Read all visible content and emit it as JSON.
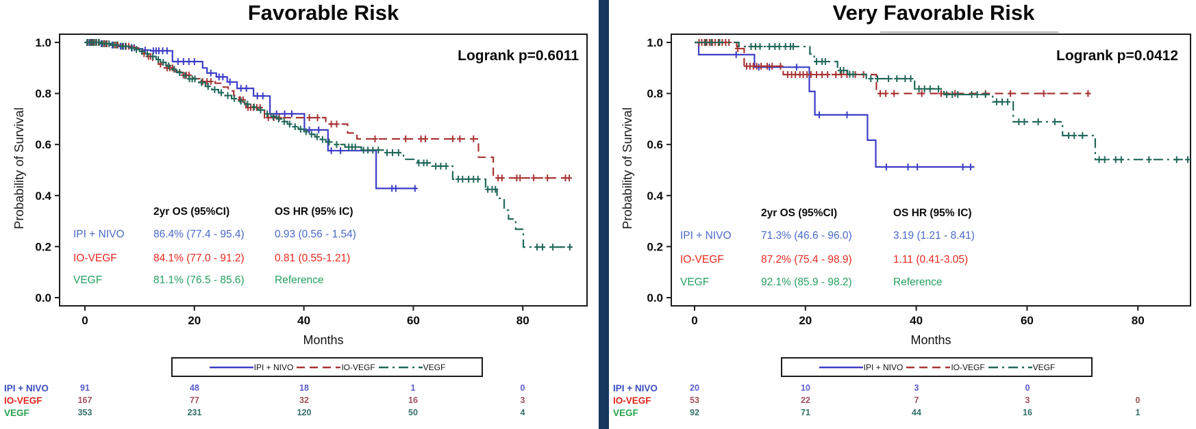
{
  "colors": {
    "line_blue": "#3c3cc8",
    "line_red": "#a83434",
    "line_green": "#20685a",
    "stats_blue": "#4a68c8",
    "stats_red": "#e8281e",
    "stats_green": "#22a060",
    "risk_label_blue": "#3b4cc0",
    "risk_label_red": "#e0241b",
    "risk_label_green": "#28a24c",
    "risk_num_blue": "#5a5ad2",
    "risk_num_red": "#a0505e",
    "risk_num_green": "#34706a",
    "divider": "#17365d",
    "axis": "#1a1a1a",
    "artifact_gray": "#b3b3b3"
  },
  "chart_data": [
    {
      "type": "line",
      "subtype": "kaplan-meier-step",
      "title": "Favorable Risk",
      "annotation": "Logrank p=0.6011",
      "xlabel": "Months",
      "ylabel": "Probability of Survival",
      "x_ticks": [
        0,
        20,
        40,
        60,
        80
      ],
      "y_ticks": [
        0.0,
        0.2,
        0.4,
        0.6,
        0.8,
        1.0
      ],
      "xlim": [
        -4.6,
        91.7
      ],
      "ylim": [
        -0.03,
        1.03
      ],
      "grid": false,
      "legend_position": "bottom",
      "series": [
        {
          "name": "IPI + NIVO",
          "color": "#3c3cc8",
          "dash": "solid",
          "steps": [
            [
              0,
              1.0
            ],
            [
              2.5,
              0.995
            ],
            [
              4.5,
              0.99
            ],
            [
              6,
              0.985
            ],
            [
              8,
              0.98
            ],
            [
              9.5,
              0.975
            ],
            [
              10.5,
              0.97
            ],
            [
              12,
              0.967
            ],
            [
              16,
              0.925
            ],
            [
              21.5,
              0.9
            ],
            [
              22.3,
              0.88
            ],
            [
              24,
              0.865
            ],
            [
              26,
              0.845
            ],
            [
              27.8,
              0.82
            ],
            [
              30.8,
              0.79
            ],
            [
              33.8,
              0.72
            ],
            [
              40.1,
              0.657
            ],
            [
              44.4,
              0.576
            ],
            [
              53.2,
              0.428
            ],
            [
              60.6,
              0.428
            ]
          ],
          "censors": [
            0.4,
            0.8,
            1.2,
            1.6,
            2,
            3,
            3.5,
            5,
            6.5,
            7,
            8.5,
            9,
            11,
            12.5,
            13,
            13.5,
            14.2,
            15,
            17,
            18,
            19,
            20,
            23,
            24.5,
            25.2,
            26.5,
            28.5,
            29.5,
            31.5,
            32.5,
            35,
            36.5,
            37.8,
            41,
            42.7,
            45,
            46.7,
            56.1,
            56.8,
            60.3
          ]
        },
        {
          "name": "IO-VEGF",
          "color": "#a83434",
          "dash": "dash",
          "steps": [
            [
              0,
              1.0
            ],
            [
              3,
              0.995
            ],
            [
              5,
              0.99
            ],
            [
              7,
              0.985
            ],
            [
              9,
              0.978
            ],
            [
              9.8,
              0.97
            ],
            [
              10.4,
              0.956
            ],
            [
              11.2,
              0.945
            ],
            [
              12.4,
              0.93
            ],
            [
              13.4,
              0.915
            ],
            [
              14.5,
              0.9
            ],
            [
              16.6,
              0.885
            ],
            [
              17.5,
              0.872
            ],
            [
              19.8,
              0.858
            ],
            [
              21,
              0.847
            ],
            [
              23.8,
              0.84
            ],
            [
              25,
              0.825
            ],
            [
              26.2,
              0.81
            ],
            [
              27.2,
              0.792
            ],
            [
              28.2,
              0.775
            ],
            [
              29.4,
              0.745
            ],
            [
              32.8,
              0.705
            ],
            [
              44,
              0.68
            ],
            [
              48,
              0.645
            ],
            [
              49.7,
              0.622
            ],
            [
              71.9,
              0.55
            ],
            [
              74.6,
              0.469
            ],
            [
              88.9,
              0.469
            ]
          ],
          "censors": [
            0.5,
            1,
            1.5,
            2,
            2.5,
            3.5,
            4,
            5.5,
            6,
            7.5,
            8,
            10.8,
            11.6,
            12,
            13.8,
            15,
            15.5,
            16,
            18,
            18.5,
            19,
            21.5,
            22.3,
            23,
            28.4,
            28.9,
            29.8,
            30.3,
            30.8,
            31.4,
            32,
            33.5,
            34.5,
            35.5,
            41,
            42.5,
            45,
            46,
            53,
            58.6,
            61.4,
            62.2,
            67.2,
            68.5,
            71,
            75.5,
            76.2,
            78.9,
            79.5,
            82,
            84.5,
            87.8,
            88.5
          ]
        },
        {
          "name": "VEGF",
          "color": "#20685a",
          "dash": "dashdot",
          "steps": [
            [
              0,
              1.0
            ],
            [
              3,
              0.995
            ],
            [
              5,
              0.99
            ],
            [
              6.5,
              0.985
            ],
            [
              8,
              0.978
            ],
            [
              9,
              0.972
            ],
            [
              10,
              0.965
            ],
            [
              11,
              0.955
            ],
            [
              12,
              0.945
            ],
            [
              13,
              0.933
            ],
            [
              13.8,
              0.922
            ],
            [
              14.8,
              0.908
            ],
            [
              15.8,
              0.895
            ],
            [
              16.8,
              0.882
            ],
            [
              17.8,
              0.87
            ],
            [
              18.8,
              0.857
            ],
            [
              20.8,
              0.843
            ],
            [
              22,
              0.828
            ],
            [
              23.2,
              0.815
            ],
            [
              24.4,
              0.803
            ],
            [
              25.6,
              0.792
            ],
            [
              26.8,
              0.78
            ],
            [
              28,
              0.77
            ],
            [
              29.2,
              0.758
            ],
            [
              30.4,
              0.747
            ],
            [
              31.6,
              0.735
            ],
            [
              32.8,
              0.72
            ],
            [
              34,
              0.71
            ],
            [
              35,
              0.7
            ],
            [
              36,
              0.69
            ],
            [
              37,
              0.68
            ],
            [
              38,
              0.67
            ],
            [
              39,
              0.66
            ],
            [
              40,
              0.65
            ],
            [
              41,
              0.64
            ],
            [
              42,
              0.63
            ],
            [
              43,
              0.62
            ],
            [
              44,
              0.61
            ],
            [
              45.5,
              0.6
            ],
            [
              47.5,
              0.59
            ],
            [
              50.5,
              0.578
            ],
            [
              54.7,
              0.568
            ],
            [
              58.2,
              0.542
            ],
            [
              60.8,
              0.528
            ],
            [
              63.4,
              0.515
            ],
            [
              67.2,
              0.464
            ],
            [
              73.2,
              0.424
            ],
            [
              75.3,
              0.389
            ],
            [
              76.6,
              0.343
            ],
            [
              77.4,
              0.308
            ],
            [
              78.7,
              0.268
            ],
            [
              80.1,
              0.198
            ],
            [
              88.9,
              0.198
            ]
          ],
          "censors": [
            0.4,
            0.9,
            1.3,
            1.7,
            2.1,
            2.6,
            3.2,
            3.8,
            4.4,
            5.2,
            5.8,
            6.8,
            7.4,
            8.6,
            9.4,
            10.4,
            11.4,
            12.4,
            13.4,
            14.3,
            15.3,
            16.3,
            17.3,
            18.3,
            19.1,
            19.6,
            20.1,
            21.3,
            22.5,
            23.7,
            24.9,
            26.1,
            27.3,
            28.5,
            29.7,
            30.9,
            32.1,
            33.3,
            34.4,
            35.4,
            36.4,
            37.4,
            38.4,
            39.4,
            40.4,
            41.4,
            42.4,
            43.4,
            44.6,
            46,
            48.2,
            48.8,
            49.4,
            50.9,
            51.7,
            52.6,
            53.6,
            55.2,
            56.2,
            57.3,
            61,
            61.9,
            62.5,
            64.1,
            65,
            66,
            68.2,
            69,
            70.1,
            71,
            71.8,
            73.6,
            74.4,
            75,
            82.6,
            83.6,
            85.5,
            88.6
          ]
        }
      ]
    },
    {
      "type": "line",
      "subtype": "kaplan-meier-step",
      "title": "Very Favorable Risk",
      "annotation": "Logrank p=0.0412",
      "xlabel": "Months",
      "ylabel": "Probability of Survival",
      "x_ticks": [
        0,
        20,
        40,
        60,
        80
      ],
      "y_ticks": [
        0.0,
        0.2,
        0.4,
        0.6,
        0.8,
        1.0
      ],
      "xlim": [
        -4.2,
        89.5
      ],
      "ylim": [
        -0.03,
        1.03
      ],
      "grid": false,
      "legend_position": "bottom",
      "series": [
        {
          "name": "IPI + NIVO",
          "color": "#3c3cc8",
          "dash": "solid",
          "steps": [
            [
              0,
              1.0
            ],
            [
              0.74,
              0.952
            ],
            [
              10.8,
              0.903
            ],
            [
              20.7,
              0.808
            ],
            [
              21.7,
              0.716
            ],
            [
              31.2,
              0.617
            ],
            [
              32.7,
              0.512
            ],
            [
              50.5,
              0.512
            ]
          ],
          "censors": [
            7.5,
            11.6,
            13.5,
            18.4,
            22.5,
            27.5,
            34.6,
            38.5,
            40.2,
            48.4,
            49.8
          ]
        },
        {
          "name": "IO-VEGF",
          "color": "#a83434",
          "dash": "dash",
          "steps": [
            [
              0,
              1.0
            ],
            [
              7.6,
              0.976
            ],
            [
              8.95,
              0.907
            ],
            [
              16,
              0.874
            ],
            [
              32.8,
              0.8
            ],
            [
              71.5,
              0.8
            ]
          ],
          "censors": [
            0.8,
            1.3,
            1.8,
            2.2,
            2.7,
            3.2,
            3.7,
            4.3,
            5,
            5.6,
            6.2,
            7.8,
            9.4,
            10,
            10.6,
            11.2,
            12,
            13.1,
            14,
            15.5,
            16.8,
            17.5,
            18.2,
            19,
            19.6,
            20.3,
            21,
            22,
            23,
            24,
            25.5,
            26.5,
            27.5,
            29,
            30.5,
            33.5,
            34.5,
            36,
            41,
            44.5,
            47,
            52.5,
            57,
            63,
            71
          ]
        },
        {
          "name": "VEGF",
          "color": "#20685a",
          "dash": "dashdot",
          "steps": [
            [
              0,
              1.0
            ],
            [
              8,
              0.984
            ],
            [
              20.8,
              0.955
            ],
            [
              21.6,
              0.925
            ],
            [
              25.8,
              0.89
            ],
            [
              27.6,
              0.875
            ],
            [
              31,
              0.858
            ],
            [
              39.7,
              0.818
            ],
            [
              45,
              0.796
            ],
            [
              53.8,
              0.767
            ],
            [
              57.5,
              0.689
            ],
            [
              66.4,
              0.635
            ],
            [
              72.3,
              0.541
            ],
            [
              89.5,
              0.541
            ]
          ],
          "censors": [
            2,
            3,
            4.5,
            10.2,
            11,
            11.8,
            13.5,
            14.5,
            15.3,
            16.4,
            17.3,
            17.8,
            22,
            23,
            23.6,
            26.3,
            26.9,
            28,
            28.6,
            31.8,
            33,
            35,
            36.5,
            38,
            39,
            40.5,
            41.5,
            42.5,
            44,
            45.5,
            46.5,
            47.5,
            50,
            51,
            52.5,
            54.5,
            55.5,
            56.5,
            58.5,
            59.5,
            62,
            65,
            67.5,
            68.5,
            70,
            73,
            74,
            76,
            77,
            82,
            87,
            89
          ]
        }
      ]
    }
  ],
  "panels": [
    {
      "stats": {
        "col1_header": "2yr OS (95%CI)",
        "col2_header": "OS HR (95% IC)",
        "rows": [
          {
            "label": "IPI + NIVO",
            "os": "86.4% (77.4 - 95.4)",
            "hr": "0.93 (0.56 - 1.54)"
          },
          {
            "label": "IO-VEGF",
            "os": "84.1% (77.0 - 91.2)",
            "hr": "0.81 (0.55-1.21)"
          },
          {
            "label": "VEGF",
            "os": "81.1% (76.5 - 85.6)",
            "hr": "Reference"
          }
        ]
      },
      "risk_table": {
        "rows": [
          {
            "label": "IPI + NIVO",
            "counts": [
              "91",
              "48",
              "18",
              "1",
              "0"
            ]
          },
          {
            "label": "IO-VEGF",
            "counts": [
              "167",
              "77",
              "32",
              "16",
              "3"
            ]
          },
          {
            "label": "VEGF",
            "counts": [
              "353",
              "231",
              "120",
              "50",
              "4"
            ]
          }
        ]
      }
    },
    {
      "stats": {
        "col1_header": "2yr OS (95%CI)",
        "col2_header": "OS HR (95% IC)",
        "rows": [
          {
            "label": "IPI + NIVO",
            "os": "71.3% (46.6 - 96.0)",
            "hr": "3.19 (1.21 - 8.41)"
          },
          {
            "label": "IO-VEGF",
            "os": "87.2% (75.4 - 98.9)",
            "hr": "1.11 (0.41-3.05)"
          },
          {
            "label": "VEGF",
            "os": "92.1% (85.9 - 98.2)",
            "hr": "Reference"
          }
        ]
      },
      "risk_table": {
        "rows": [
          {
            "label": "IPI + NIVO",
            "counts": [
              "20",
              "10",
              "3",
              "0",
              ""
            ]
          },
          {
            "label": "IO-VEGF",
            "counts": [
              "53",
              "22",
              "7",
              "3",
              "0"
            ]
          },
          {
            "label": "VEGF",
            "counts": [
              "92",
              "71",
              "44",
              "16",
              "1"
            ]
          }
        ]
      }
    }
  ]
}
